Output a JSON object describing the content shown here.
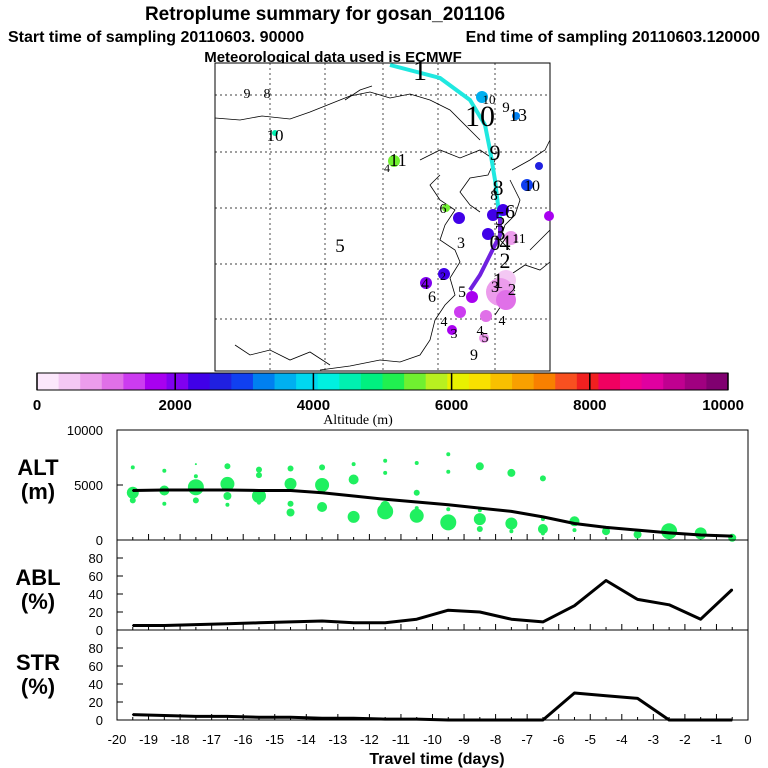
{
  "header": {
    "title": "Retroplume summary for gosan_201106",
    "start": "Start time of sampling 20110603. 90000",
    "end": "End time of sampling 20110603.120000",
    "met": "Meteorological data used is ECMWF"
  },
  "map": {
    "track_main_labels": [
      "1",
      "10",
      "9",
      "8",
      "6",
      "5",
      "3",
      "4",
      "2",
      "1",
      "0"
    ],
    "other_labels": [
      "9",
      "8",
      "10",
      "11",
      "4",
      "6",
      "5",
      "3",
      "4",
      "6",
      "2",
      "5",
      "4",
      "3",
      "4",
      "5",
      "4",
      "3",
      "9",
      "13",
      "10",
      "11",
      "10",
      "9",
      "8",
      "2",
      "1"
    ]
  },
  "colorbar": {
    "ticks": [
      "0",
      "2000",
      "4000",
      "6000",
      "8000",
      "10000"
    ],
    "label": "Altitude (m)",
    "colors": [
      "#fce8fc",
      "#f4c8f4",
      "#ec9cec",
      "#e070e8",
      "#cc3cf0",
      "#a800f0",
      "#8000f0",
      "#4000e8",
      "#2020e0",
      "#1040f0",
      "#0080f0",
      "#00b0f0",
      "#00d8f0",
      "#00f0e0",
      "#00f0b0",
      "#00f080",
      "#20f050",
      "#70f030",
      "#b8f020",
      "#e8f000",
      "#f8e000",
      "#f8c000",
      "#f8a000",
      "#f88000",
      "#f85020",
      "#f02020",
      "#f00060",
      "#f00090",
      "#e000a0",
      "#c00090",
      "#a00080",
      "#800070"
    ]
  },
  "chart_data": [
    {
      "type": "line",
      "panel": "ALT",
      "ylabel": "ALT\n(m)",
      "ylabel_lines": [
        "ALT",
        "(m)"
      ],
      "ylim": [
        0,
        10000
      ],
      "yticks": [
        0,
        5000,
        10000
      ],
      "xlim": [
        -20,
        0
      ],
      "x": [
        -19.5,
        -18.5,
        -17.5,
        -16.5,
        -15.5,
        -14.5,
        -13.5,
        -12.5,
        -11.5,
        -10.5,
        -9.5,
        -8.5,
        -7.5,
        -6.5,
        -5.5,
        -4.5,
        -3.5,
        -2.5,
        -1.5,
        -0.5
      ],
      "values": [
        4500,
        4550,
        4550,
        4550,
        4500,
        4500,
        4300,
        4000,
        3700,
        3450,
        3200,
        2900,
        2600,
        2100,
        1500,
        1150,
        900,
        650,
        450,
        350
      ],
      "scatter": [
        {
          "x": -19.5,
          "y": 4300,
          "r": 6
        },
        {
          "x": -19.5,
          "y": 6600,
          "r": 2
        },
        {
          "x": -19.5,
          "y": 3600,
          "r": 3
        },
        {
          "x": -18.5,
          "y": 4500,
          "r": 5
        },
        {
          "x": -18.5,
          "y": 6300,
          "r": 2
        },
        {
          "x": -18.5,
          "y": 3300,
          "r": 2
        },
        {
          "x": -17.5,
          "y": 4800,
          "r": 8
        },
        {
          "x": -17.5,
          "y": 6900,
          "r": 1
        },
        {
          "x": -17.5,
          "y": 3600,
          "r": 3
        },
        {
          "x": -17.5,
          "y": 5800,
          "r": 2
        },
        {
          "x": -16.5,
          "y": 5100,
          "r": 7
        },
        {
          "x": -16.5,
          "y": 6700,
          "r": 3
        },
        {
          "x": -16.5,
          "y": 3200,
          "r": 2
        },
        {
          "x": -16.5,
          "y": 4000,
          "r": 4
        },
        {
          "x": -15.5,
          "y": 4000,
          "r": 7
        },
        {
          "x": -15.5,
          "y": 5900,
          "r": 3
        },
        {
          "x": -15.5,
          "y": 6400,
          "r": 3
        },
        {
          "x": -15.5,
          "y": 3400,
          "r": 2
        },
        {
          "x": -14.5,
          "y": 5100,
          "r": 6
        },
        {
          "x": -14.5,
          "y": 6500,
          "r": 3
        },
        {
          "x": -14.5,
          "y": 3300,
          "r": 3
        },
        {
          "x": -14.5,
          "y": 2500,
          "r": 4
        },
        {
          "x": -13.5,
          "y": 5000,
          "r": 7
        },
        {
          "x": -13.5,
          "y": 6600,
          "r": 3
        },
        {
          "x": -13.5,
          "y": 3000,
          "r": 5
        },
        {
          "x": -12.5,
          "y": 5500,
          "r": 5
        },
        {
          "x": -12.5,
          "y": 6900,
          "r": 2
        },
        {
          "x": -12.5,
          "y": 2100,
          "r": 6
        },
        {
          "x": -11.5,
          "y": 3100,
          "r": 5
        },
        {
          "x": -11.5,
          "y": 7200,
          "r": 2
        },
        {
          "x": -11.5,
          "y": 2600,
          "r": 8
        },
        {
          "x": -11.5,
          "y": 6100,
          "r": 2
        },
        {
          "x": -10.5,
          "y": 2200,
          "r": 7
        },
        {
          "x": -10.5,
          "y": 7000,
          "r": 2
        },
        {
          "x": -10.5,
          "y": 4300,
          "r": 3
        },
        {
          "x": -10.5,
          "y": 2900,
          "r": 2
        },
        {
          "x": -9.5,
          "y": 1600,
          "r": 8
        },
        {
          "x": -9.5,
          "y": 7800,
          "r": 2
        },
        {
          "x": -9.5,
          "y": 6200,
          "r": 2
        },
        {
          "x": -9.5,
          "y": 2800,
          "r": 2
        },
        {
          "x": -8.5,
          "y": 1900,
          "r": 6
        },
        {
          "x": -8.5,
          "y": 6700,
          "r": 4
        },
        {
          "x": -8.5,
          "y": 1000,
          "r": 3
        },
        {
          "x": -8.5,
          "y": 2700,
          "r": 2
        },
        {
          "x": -7.5,
          "y": 1500,
          "r": 6
        },
        {
          "x": -7.5,
          "y": 6100,
          "r": 4
        },
        {
          "x": -7.5,
          "y": 800,
          "r": 2
        },
        {
          "x": -6.5,
          "y": 1000,
          "r": 5
        },
        {
          "x": -6.5,
          "y": 5600,
          "r": 3
        },
        {
          "x": -6.5,
          "y": 1900,
          "r": 2
        },
        {
          "x": -6.5,
          "y": 600,
          "r": 2
        },
        {
          "x": -5.5,
          "y": 900,
          "r": 2
        },
        {
          "x": -5.5,
          "y": 1700,
          "r": 5
        },
        {
          "x": -4.5,
          "y": 800,
          "r": 4
        },
        {
          "x": -4.5,
          "y": 1100,
          "r": 2
        },
        {
          "x": -3.5,
          "y": 500,
          "r": 4
        },
        {
          "x": -2.5,
          "y": 800,
          "r": 8
        },
        {
          "x": -2.5,
          "y": 300,
          "r": 2
        },
        {
          "x": -1.5,
          "y": 600,
          "r": 6
        },
        {
          "x": -0.5,
          "y": 200,
          "r": 4
        }
      ]
    },
    {
      "type": "line",
      "panel": "ABL",
      "ylabel_lines": [
        "ABL",
        "(%)"
      ],
      "ylim": [
        0,
        100
      ],
      "yticks": [
        0,
        20,
        40,
        60,
        80
      ],
      "xlim": [
        -20,
        0
      ],
      "x": [
        -19.5,
        -18.5,
        -17.5,
        -16.5,
        -15.5,
        -14.5,
        -13.5,
        -12.5,
        -11.5,
        -10.5,
        -9.5,
        -8.5,
        -7.5,
        -6.5,
        -5.5,
        -4.5,
        -3.5,
        -2.5,
        -1.5,
        -0.5
      ],
      "values": [
        5,
        5,
        6,
        7,
        8,
        9,
        10,
        8,
        8,
        12,
        22,
        20,
        12,
        9,
        27,
        55,
        34,
        28,
        12,
        45
      ]
    },
    {
      "type": "line",
      "panel": "STR",
      "ylabel_lines": [
        "STR",
        "(%)"
      ],
      "ylim": [
        0,
        100
      ],
      "yticks": [
        0,
        20,
        40,
        60,
        80
      ],
      "xlim": [
        -20,
        0
      ],
      "xlabel": "Travel time (days)",
      "xticks": [
        "-20",
        "-19",
        "-18",
        "-17",
        "-16",
        "-15",
        "-14",
        "-13",
        "-12",
        "-11",
        "-10",
        "-9",
        "-8",
        "-7",
        "-6",
        "-5",
        "-4",
        "-3",
        "-2",
        "-1",
        "0"
      ],
      "x": [
        -19.5,
        -18.5,
        -17.5,
        -16.5,
        -15.5,
        -14.5,
        -13.5,
        -12.5,
        -11.5,
        -10.5,
        -9.5,
        -8.5,
        -7.5,
        -6.5,
        -5.5,
        -4.5,
        -3.5,
        -2.5,
        -1.5,
        -0.5
      ],
      "values": [
        6,
        5,
        4,
        4,
        3,
        3,
        2,
        2,
        1,
        1,
        0,
        0,
        0,
        0,
        30,
        27,
        24,
        0,
        0,
        0
      ]
    }
  ]
}
